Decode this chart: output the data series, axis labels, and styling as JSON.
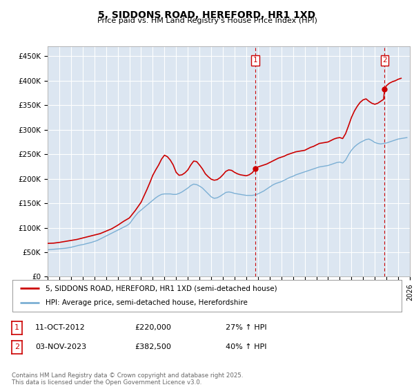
{
  "title": "5, SIDDONS ROAD, HEREFORD, HR1 1XD",
  "subtitle": "Price paid vs. HM Land Registry's House Price Index (HPI)",
  "ylim": [
    0,
    470000
  ],
  "yticks": [
    0,
    50000,
    100000,
    150000,
    200000,
    250000,
    300000,
    350000,
    400000,
    450000
  ],
  "ytick_labels": [
    "£0",
    "£50K",
    "£100K",
    "£150K",
    "£200K",
    "£250K",
    "£300K",
    "£350K",
    "£400K",
    "£450K"
  ],
  "background_color": "#ffffff",
  "plot_bg_color": "#dce6f1",
  "grid_color": "#ffffff",
  "red_line_color": "#cc0000",
  "blue_line_color": "#7bafd4",
  "marker1_x": 2012.78,
  "marker1_y": 220000,
  "marker2_x": 2023.84,
  "marker2_y": 382500,
  "marker1_date": "11-OCT-2012",
  "marker1_price": "£220,000",
  "marker1_hpi": "27% ↑ HPI",
  "marker2_date": "03-NOV-2023",
  "marker2_price": "£382,500",
  "marker2_hpi": "40% ↑ HPI",
  "legend_line1": "5, SIDDONS ROAD, HEREFORD, HR1 1XD (semi-detached house)",
  "legend_line2": "HPI: Average price, semi-detached house, Herefordshire",
  "footer": "Contains HM Land Registry data © Crown copyright and database right 2025.\nThis data is licensed under the Open Government Licence v3.0.",
  "xmin": 1995,
  "xmax": 2026,
  "hpi_data": [
    [
      1995.0,
      55000
    ],
    [
      1995.25,
      55500
    ],
    [
      1995.5,
      56000
    ],
    [
      1995.75,
      56500
    ],
    [
      1996.0,
      57000
    ],
    [
      1996.25,
      57500
    ],
    [
      1996.5,
      58000
    ],
    [
      1996.75,
      59000
    ],
    [
      1997.0,
      60000
    ],
    [
      1997.25,
      61500
    ],
    [
      1997.5,
      63000
    ],
    [
      1997.75,
      64500
    ],
    [
      1998.0,
      65500
    ],
    [
      1998.25,
      67000
    ],
    [
      1998.5,
      68500
    ],
    [
      1998.75,
      70000
    ],
    [
      1999.0,
      72000
    ],
    [
      1999.25,
      74000
    ],
    [
      1999.5,
      77000
    ],
    [
      1999.75,
      80000
    ],
    [
      2000.0,
      83000
    ],
    [
      2000.25,
      86000
    ],
    [
      2000.5,
      89000
    ],
    [
      2000.75,
      92000
    ],
    [
      2001.0,
      95000
    ],
    [
      2001.25,
      98000
    ],
    [
      2001.5,
      101000
    ],
    [
      2001.75,
      104000
    ],
    [
      2002.0,
      108000
    ],
    [
      2002.25,
      116000
    ],
    [
      2002.5,
      124000
    ],
    [
      2002.75,
      131000
    ],
    [
      2003.0,
      136000
    ],
    [
      2003.25,
      141000
    ],
    [
      2003.5,
      146000
    ],
    [
      2003.75,
      151000
    ],
    [
      2004.0,
      156000
    ],
    [
      2004.25,
      161000
    ],
    [
      2004.5,
      165000
    ],
    [
      2004.75,
      168000
    ],
    [
      2005.0,
      169000
    ],
    [
      2005.25,
      169000
    ],
    [
      2005.5,
      169000
    ],
    [
      2005.75,
      168000
    ],
    [
      2006.0,
      168000
    ],
    [
      2006.25,
      170000
    ],
    [
      2006.5,
      173000
    ],
    [
      2006.75,
      177000
    ],
    [
      2007.0,
      181000
    ],
    [
      2007.25,
      186000
    ],
    [
      2007.5,
      189000
    ],
    [
      2007.75,
      188000
    ],
    [
      2008.0,
      185000
    ],
    [
      2008.25,
      181000
    ],
    [
      2008.5,
      175000
    ],
    [
      2008.75,
      169000
    ],
    [
      2009.0,
      163000
    ],
    [
      2009.25,
      160000
    ],
    [
      2009.5,
      161000
    ],
    [
      2009.75,
      164000
    ],
    [
      2010.0,
      168000
    ],
    [
      2010.25,
      172000
    ],
    [
      2010.5,
      173000
    ],
    [
      2010.75,
      172000
    ],
    [
      2011.0,
      170000
    ],
    [
      2011.25,
      169000
    ],
    [
      2011.5,
      168000
    ],
    [
      2011.75,
      167000
    ],
    [
      2012.0,
      166000
    ],
    [
      2012.25,
      166000
    ],
    [
      2012.5,
      166000
    ],
    [
      2012.75,
      167000
    ],
    [
      2013.0,
      169000
    ],
    [
      2013.25,
      172000
    ],
    [
      2013.5,
      175000
    ],
    [
      2013.75,
      179000
    ],
    [
      2014.0,
      183000
    ],
    [
      2014.25,
      187000
    ],
    [
      2014.5,
      190000
    ],
    [
      2014.75,
      192000
    ],
    [
      2015.0,
      194000
    ],
    [
      2015.25,
      197000
    ],
    [
      2015.5,
      200000
    ],
    [
      2015.75,
      203000
    ],
    [
      2016.0,
      205000
    ],
    [
      2016.25,
      208000
    ],
    [
      2016.5,
      210000
    ],
    [
      2016.75,
      212000
    ],
    [
      2017.0,
      214000
    ],
    [
      2017.25,
      216000
    ],
    [
      2017.5,
      218000
    ],
    [
      2017.75,
      220000
    ],
    [
      2018.0,
      222000
    ],
    [
      2018.25,
      224000
    ],
    [
      2018.5,
      225000
    ],
    [
      2018.75,
      226000
    ],
    [
      2019.0,
      227000
    ],
    [
      2019.25,
      229000
    ],
    [
      2019.5,
      231000
    ],
    [
      2019.75,
      233000
    ],
    [
      2020.0,
      234000
    ],
    [
      2020.25,
      232000
    ],
    [
      2020.5,
      238000
    ],
    [
      2020.75,
      249000
    ],
    [
      2021.0,
      258000
    ],
    [
      2021.25,
      265000
    ],
    [
      2021.5,
      270000
    ],
    [
      2021.75,
      274000
    ],
    [
      2022.0,
      277000
    ],
    [
      2022.25,
      280000
    ],
    [
      2022.5,
      281000
    ],
    [
      2022.75,
      278000
    ],
    [
      2023.0,
      274000
    ],
    [
      2023.25,
      272000
    ],
    [
      2023.5,
      271000
    ],
    [
      2023.75,
      272000
    ],
    [
      2024.0,
      273000
    ],
    [
      2024.25,
      275000
    ],
    [
      2024.5,
      277000
    ],
    [
      2024.75,
      279000
    ],
    [
      2025.0,
      281000
    ],
    [
      2025.5,
      283000
    ],
    [
      2025.75,
      284000
    ]
  ],
  "price_data": [
    [
      1995.0,
      68000
    ],
    [
      1995.5,
      68500
    ],
    [
      1996.0,
      70000
    ],
    [
      1996.5,
      72000
    ],
    [
      1997.0,
      74000
    ],
    [
      1997.5,
      76000
    ],
    [
      1998.0,
      79000
    ],
    [
      1998.5,
      82000
    ],
    [
      1999.0,
      85000
    ],
    [
      1999.5,
      88000
    ],
    [
      2000.0,
      93000
    ],
    [
      2000.5,
      98000
    ],
    [
      2001.0,
      105000
    ],
    [
      2001.5,
      113000
    ],
    [
      2002.0,
      120000
    ],
    [
      2002.5,
      135000
    ],
    [
      2003.0,
      152000
    ],
    [
      2003.25,
      165000
    ],
    [
      2003.5,
      178000
    ],
    [
      2003.75,
      192000
    ],
    [
      2004.0,
      207000
    ],
    [
      2004.25,
      218000
    ],
    [
      2004.5,
      228000
    ],
    [
      2004.75,
      240000
    ],
    [
      2005.0,
      248000
    ],
    [
      2005.25,
      245000
    ],
    [
      2005.5,
      238000
    ],
    [
      2005.75,
      228000
    ],
    [
      2006.0,
      213000
    ],
    [
      2006.25,
      207000
    ],
    [
      2006.5,
      208000
    ],
    [
      2006.75,
      212000
    ],
    [
      2007.0,
      218000
    ],
    [
      2007.25,
      228000
    ],
    [
      2007.5,
      236000
    ],
    [
      2007.75,
      235000
    ],
    [
      2008.0,
      228000
    ],
    [
      2008.25,
      220000
    ],
    [
      2008.5,
      210000
    ],
    [
      2008.75,
      204000
    ],
    [
      2009.0,
      199000
    ],
    [
      2009.25,
      197000
    ],
    [
      2009.5,
      198000
    ],
    [
      2009.75,
      202000
    ],
    [
      2010.0,
      208000
    ],
    [
      2010.25,
      215000
    ],
    [
      2010.5,
      218000
    ],
    [
      2010.75,
      217000
    ],
    [
      2011.0,
      213000
    ],
    [
      2011.25,
      210000
    ],
    [
      2011.5,
      208000
    ],
    [
      2011.75,
      207000
    ],
    [
      2012.0,
      206000
    ],
    [
      2012.25,
      208000
    ],
    [
      2012.5,
      212000
    ],
    [
      2012.78,
      220000
    ],
    [
      2013.0,
      224000
    ],
    [
      2013.25,
      226000
    ],
    [
      2013.5,
      228000
    ],
    [
      2013.75,
      230000
    ],
    [
      2014.0,
      233000
    ],
    [
      2014.25,
      236000
    ],
    [
      2014.5,
      239000
    ],
    [
      2014.75,
      242000
    ],
    [
      2015.0,
      244000
    ],
    [
      2015.25,
      246000
    ],
    [
      2015.5,
      249000
    ],
    [
      2015.75,
      251000
    ],
    [
      2016.0,
      253000
    ],
    [
      2016.25,
      255000
    ],
    [
      2016.5,
      256000
    ],
    [
      2016.75,
      257000
    ],
    [
      2017.0,
      258000
    ],
    [
      2017.25,
      261000
    ],
    [
      2017.5,
      264000
    ],
    [
      2017.75,
      266000
    ],
    [
      2018.0,
      269000
    ],
    [
      2018.25,
      272000
    ],
    [
      2018.5,
      273000
    ],
    [
      2018.75,
      274000
    ],
    [
      2019.0,
      275000
    ],
    [
      2019.25,
      278000
    ],
    [
      2019.5,
      281000
    ],
    [
      2019.75,
      283000
    ],
    [
      2020.0,
      284000
    ],
    [
      2020.25,
      282000
    ],
    [
      2020.5,
      292000
    ],
    [
      2020.75,
      308000
    ],
    [
      2021.0,
      325000
    ],
    [
      2021.25,
      338000
    ],
    [
      2021.5,
      348000
    ],
    [
      2021.75,
      356000
    ],
    [
      2022.0,
      361000
    ],
    [
      2022.25,
      363000
    ],
    [
      2022.5,
      358000
    ],
    [
      2022.75,
      354000
    ],
    [
      2023.0,
      352000
    ],
    [
      2023.25,
      354000
    ],
    [
      2023.5,
      358000
    ],
    [
      2023.75,
      362000
    ],
    [
      2023.84,
      382500
    ],
    [
      2024.0,
      390000
    ],
    [
      2024.25,
      395000
    ],
    [
      2024.5,
      398000
    ],
    [
      2024.75,
      400000
    ],
    [
      2025.0,
      403000
    ],
    [
      2025.25,
      405000
    ]
  ]
}
